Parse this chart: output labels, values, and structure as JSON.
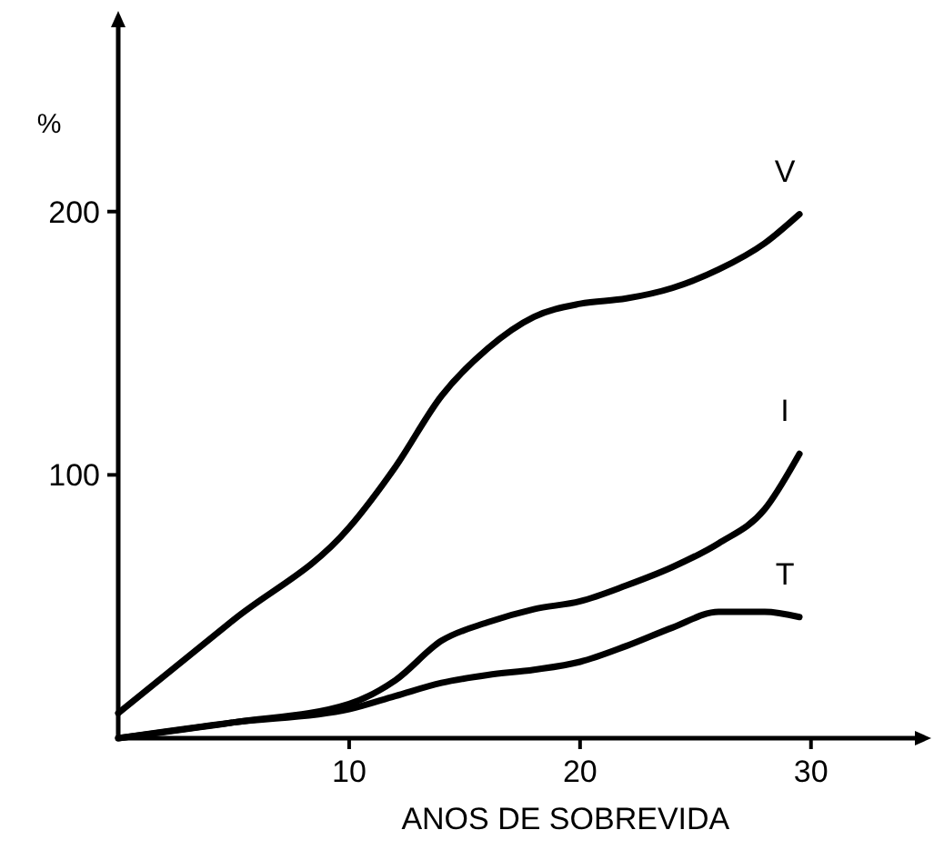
{
  "chart_data": {
    "type": "line",
    "xlabel": "ANOS DE SOBREVIDA",
    "ylabel": "%",
    "xlim": [
      0,
      34.5
    ],
    "ylim": [
      0,
      270
    ],
    "xticks": [
      10,
      20,
      30
    ],
    "yticks": [
      100,
      200
    ],
    "grid": false,
    "marker": "none",
    "line_style": "solid",
    "x": [
      0,
      5,
      10,
      12,
      14,
      16,
      18,
      20,
      22,
      24,
      26,
      28,
      29.5
    ],
    "series": [
      {
        "name": "V",
        "color": "#000000",
        "values": [
          9.5,
          45,
          80,
          103,
          130,
          148,
          160,
          165,
          167,
          171,
          178,
          188,
          199
        ]
      },
      {
        "name": "I",
        "color": "#000000",
        "values": [
          0,
          6,
          13,
          22,
          37,
          44,
          49,
          52,
          58,
          65,
          74,
          87,
          108
        ]
      },
      {
        "name": "T",
        "color": "#000000",
        "values": [
          0,
          6,
          11,
          16,
          21,
          24,
          26,
          29,
          35,
          42,
          48,
          48,
          46
        ]
      }
    ]
  }
}
